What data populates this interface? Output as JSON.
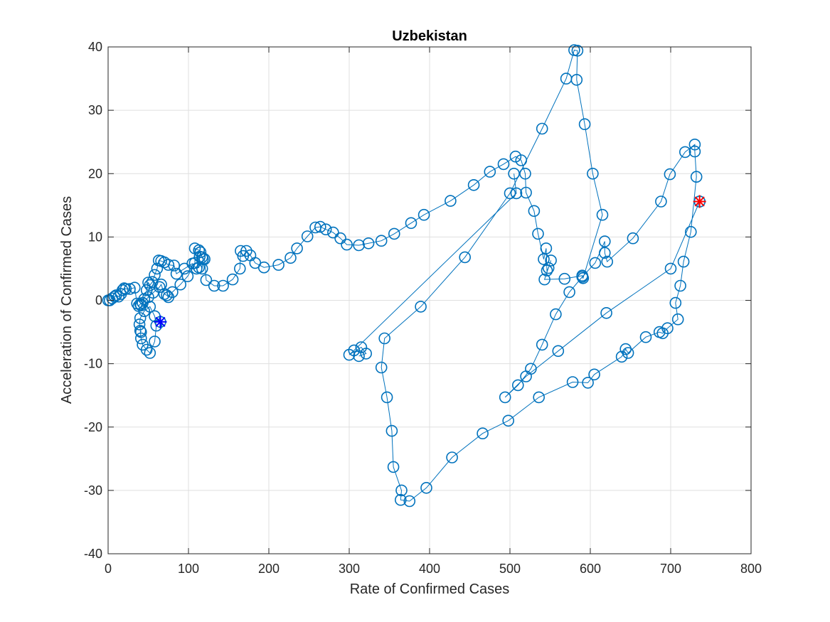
{
  "chart_data": {
    "type": "scatter",
    "title": "Uzbekistan",
    "xlabel": "Rate of Confirmed Cases",
    "ylabel": "Acceleration of Confirmed Cases",
    "xlim": [
      0,
      800
    ],
    "ylim": [
      -40,
      40
    ],
    "xticks": [
      0,
      100,
      200,
      300,
      400,
      500,
      600,
      700,
      800
    ],
    "yticks": [
      -40,
      -30,
      -20,
      -10,
      0,
      10,
      20,
      30,
      40
    ],
    "grid": true,
    "line_color": "#0072BD",
    "start_marker_color": "#0000ff",
    "end_marker_color": "#ff0000",
    "series": [
      {
        "style": "line-with-circle-markers",
        "points": [
          [
            0,
            0
          ],
          [
            2,
            0
          ],
          [
            5,
            0.3
          ],
          [
            8,
            0.6
          ],
          [
            10,
            0.8
          ],
          [
            13,
            0.6
          ],
          [
            16,
            1.0
          ],
          [
            18,
            1.6
          ],
          [
            20,
            1.9
          ],
          [
            22,
            1.8
          ],
          [
            27,
            1.8
          ],
          [
            33,
            2.0
          ],
          [
            36,
            -0.5
          ],
          [
            38,
            -0.9
          ],
          [
            40,
            -0.6
          ],
          [
            43,
            -0.4
          ],
          [
            45,
            0.2
          ],
          [
            48,
            1.6
          ],
          [
            50,
            2.8
          ],
          [
            52,
            2.4
          ],
          [
            55,
            2.9
          ],
          [
            58,
            4.0
          ],
          [
            61,
            5.0
          ],
          [
            63,
            6.3
          ],
          [
            66,
            6.2
          ],
          [
            70,
            6.0
          ],
          [
            75,
            5.6
          ],
          [
            82,
            5.5
          ],
          [
            85,
            4.2
          ],
          [
            95,
            5.0
          ],
          [
            105,
            5.8
          ],
          [
            110,
            5.0
          ],
          [
            113,
            5.2
          ],
          [
            114,
            6.9
          ],
          [
            115,
            7.6
          ],
          [
            117,
            6.8
          ],
          [
            120,
            6.5
          ],
          [
            122,
            3.2
          ],
          [
            132,
            2.3
          ],
          [
            143,
            2.3
          ],
          [
            155,
            3.3
          ],
          [
            164,
            5.0
          ],
          [
            165,
            7.8
          ],
          [
            168,
            7.0
          ],
          [
            172,
            7.8
          ],
          [
            177,
            7.1
          ],
          [
            183,
            5.9
          ],
          [
            194,
            5.2
          ],
          [
            212,
            5.6
          ],
          [
            227,
            6.7
          ],
          [
            235,
            8.2
          ],
          [
            248,
            10.1
          ],
          [
            258,
            11.5
          ],
          [
            264,
            11.6
          ],
          [
            271,
            11.2
          ],
          [
            280,
            10.7
          ],
          [
            289,
            9.8
          ],
          [
            297,
            8.8
          ],
          [
            312,
            8.7
          ],
          [
            324,
            9.0
          ],
          [
            340,
            9.4
          ],
          [
            356,
            10.5
          ],
          [
            377,
            12.2
          ],
          [
            393,
            13.5
          ],
          [
            426,
            15.7
          ],
          [
            455,
            18.2
          ],
          [
            475,
            20.3
          ],
          [
            492,
            21.5
          ],
          [
            507,
            22.7
          ],
          [
            514,
            22.1
          ],
          [
            519,
            20.0
          ],
          [
            520,
            17.0
          ],
          [
            530,
            14.1
          ],
          [
            535,
            10.5
          ],
          [
            542,
            6.5
          ],
          [
            545,
            8.2
          ],
          [
            546,
            4.7
          ],
          [
            548,
            5.1
          ],
          [
            551,
            6.3
          ],
          [
            543,
            3.3
          ],
          [
            568,
            3.4
          ],
          [
            590,
            3.9
          ],
          [
            591,
            3.5
          ],
          [
            615,
            13.5
          ],
          [
            603,
            20.0
          ],
          [
            593,
            27.8
          ],
          [
            583,
            34.8
          ],
          [
            584,
            39.4
          ],
          [
            580,
            39.5
          ],
          [
            570,
            35.0
          ],
          [
            540,
            27.1
          ],
          [
            500,
            16.9
          ],
          [
            444,
            6.8
          ],
          [
            389,
            -1.0
          ],
          [
            344,
            -6.0
          ],
          [
            340,
            -10.6
          ],
          [
            347,
            -15.3
          ],
          [
            353,
            -20.6
          ],
          [
            355,
            -26.3
          ],
          [
            365,
            -30.0
          ],
          [
            364,
            -31.5
          ],
          [
            375,
            -31.7
          ],
          [
            396,
            -29.6
          ],
          [
            428,
            -24.8
          ],
          [
            466,
            -21.0
          ],
          [
            498,
            -19.0
          ],
          [
            536,
            -15.3
          ],
          [
            578,
            -12.9
          ],
          [
            597,
            -13.0
          ],
          [
            605,
            -11.7
          ],
          [
            639,
            -8.9
          ],
          [
            644,
            -7.7
          ],
          [
            647,
            -8.3
          ],
          [
            669,
            -5.8
          ],
          [
            686,
            -5.0
          ],
          [
            690,
            -5.2
          ],
          [
            696,
            -4.4
          ],
          [
            709,
            -3.0
          ],
          [
            706,
            -0.4
          ],
          [
            712,
            2.3
          ],
          [
            716,
            6.1
          ],
          [
            725,
            10.8
          ],
          [
            732,
            19.5
          ],
          [
            730,
            23.5
          ],
          [
            730,
            24.6
          ],
          [
            718,
            23.4
          ],
          [
            699,
            19.9
          ],
          [
            688,
            15.6
          ],
          [
            653,
            9.8
          ],
          [
            621,
            6.1
          ],
          [
            618,
            7.5
          ],
          [
            618,
            9.3
          ],
          [
            606,
            5.9
          ],
          [
            590,
            3.7
          ],
          [
            574,
            1.3
          ],
          [
            557,
            -2.2
          ],
          [
            540,
            -7.0
          ],
          [
            526,
            -10.8
          ],
          [
            510,
            -13.4
          ],
          [
            494,
            -15.3
          ],
          [
            520,
            -12.0
          ],
          [
            560,
            -8.0
          ],
          [
            620,
            -2.0
          ],
          [
            700,
            5.0
          ],
          [
            736,
            15.6
          ]
        ]
      },
      {
        "style": "line-with-circle-markers",
        "points": [
          [
            40,
            -4.8
          ],
          [
            41,
            -6.0
          ],
          [
            43,
            -7.0
          ],
          [
            48,
            -7.8
          ],
          [
            52,
            -8.3
          ],
          [
            58,
            -6.5
          ],
          [
            60,
            -4.0
          ],
          [
            58,
            -2.5
          ],
          [
            52,
            -1.0
          ],
          [
            45,
            -1.7
          ],
          [
            40,
            -2.8
          ],
          [
            39,
            -3.8
          ],
          [
            41,
            -5.0
          ]
        ]
      },
      {
        "style": "line-with-circle-markers",
        "points": [
          [
            41,
            -0.8
          ],
          [
            50,
            0.5
          ],
          [
            56,
            1.2
          ],
          [
            64,
            2.1
          ],
          [
            66,
            2.5
          ],
          [
            70,
            1.0
          ],
          [
            73,
            0.8
          ],
          [
            75,
            0.5
          ],
          [
            80,
            1.3
          ],
          [
            90,
            2.5
          ],
          [
            99,
            3.8
          ],
          [
            108,
            5.9
          ],
          [
            108,
            8.2
          ],
          [
            113,
            7.9
          ],
          [
            118,
            6.5
          ],
          [
            117,
            5.0
          ]
        ]
      },
      {
        "style": "line-with-circle-markers",
        "points": [
          [
            505,
            20.0
          ],
          [
            508,
            16.9
          ],
          [
            306,
            -7.9
          ],
          [
            300,
            -8.6
          ],
          [
            315,
            -7.4
          ],
          [
            321,
            -8.4
          ],
          [
            312,
            -8.8
          ]
        ]
      }
    ],
    "start_point": {
      "x": 65,
      "y": -3.4,
      "marker": "asterisk-x"
    },
    "end_point": {
      "x": 736,
      "y": 15.6,
      "marker": "asterisk-x"
    }
  }
}
